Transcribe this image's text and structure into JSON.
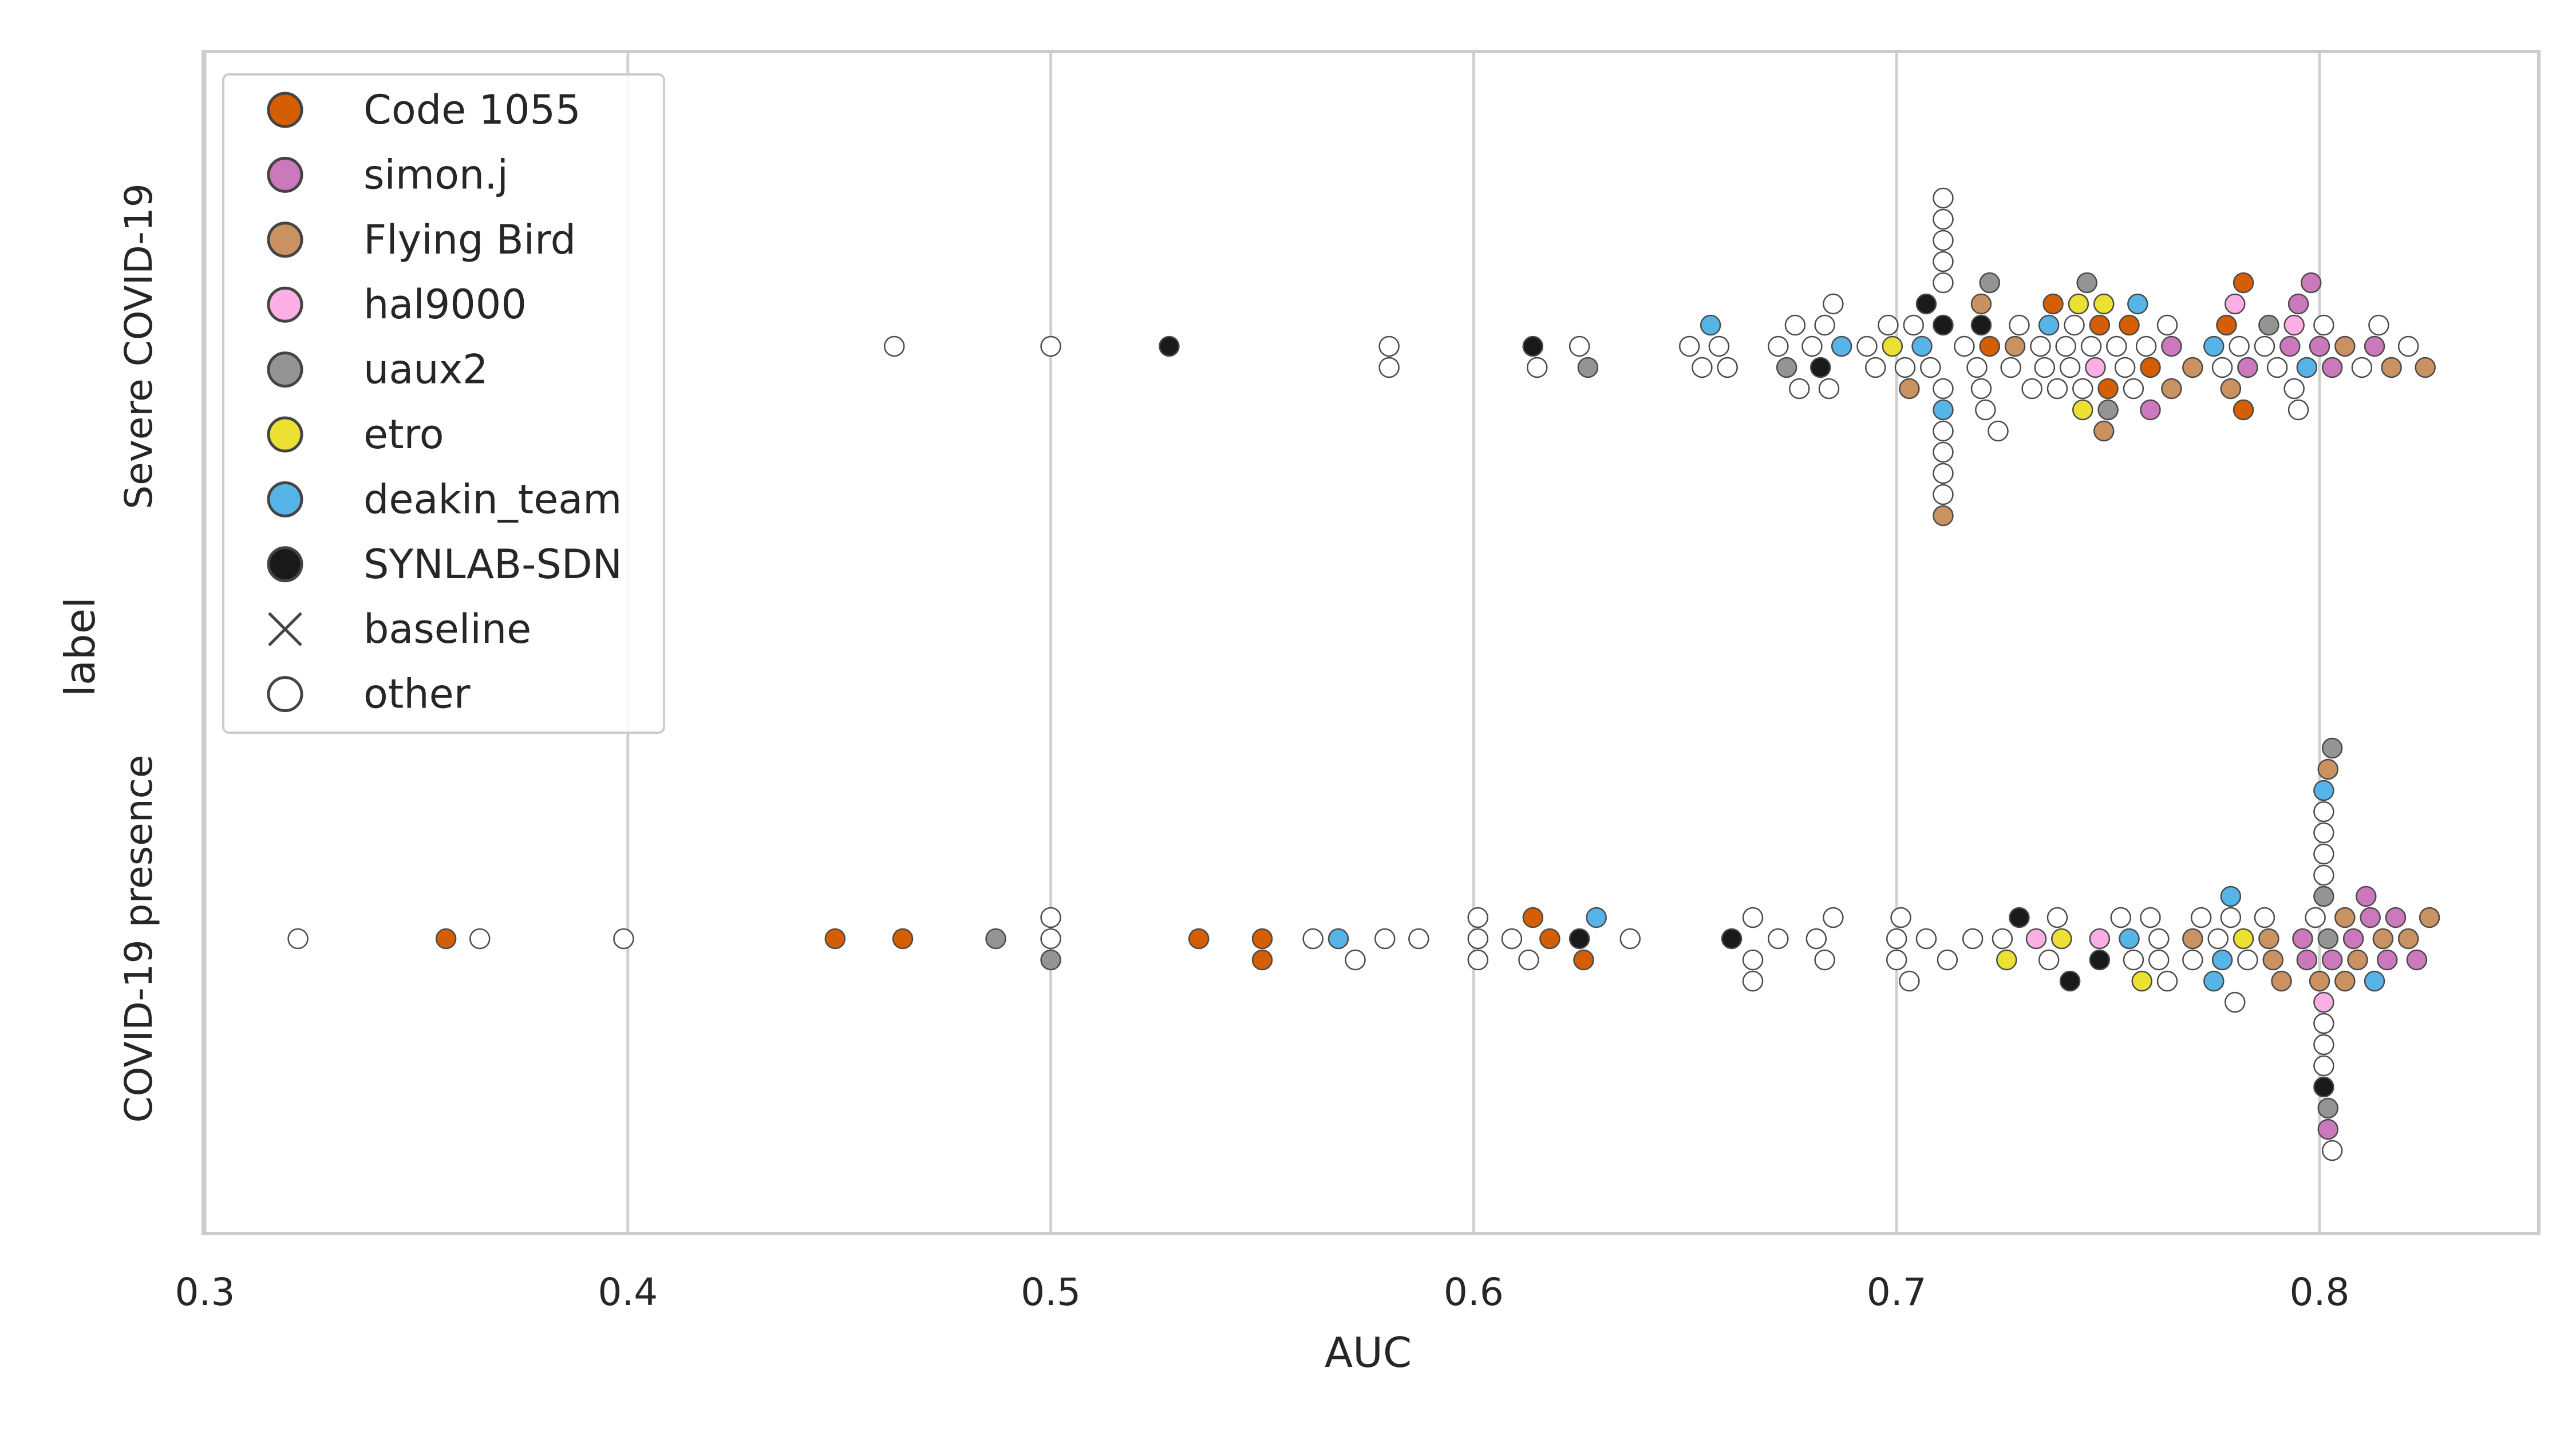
{
  "chart_data": {
    "type": "scatter",
    "subtype": "swarm",
    "title": "",
    "xlabel": "AUC",
    "ylabel": "label",
    "xlim": [
      0.3,
      0.85
    ],
    "xticks": [
      0.3,
      0.4,
      0.5,
      0.6,
      0.7,
      0.8
    ],
    "xtick_labels": [
      "0.3",
      "0.4",
      "0.5",
      "0.6",
      "0.7",
      "0.8"
    ],
    "categories": [
      "Severe COVID-19",
      "COVID-19 presence"
    ],
    "grid": "vertical",
    "legend_position": "top-left",
    "legend": [
      {
        "key": "code1055",
        "label": "Code 1055",
        "color": "#d55e00",
        "marker": "circle"
      },
      {
        "key": "simon",
        "label": "simon.j",
        "color": "#cc78bc",
        "marker": "circle"
      },
      {
        "key": "flying",
        "label": "Flying Bird",
        "color": "#ca9161",
        "marker": "circle"
      },
      {
        "key": "hal",
        "label": "hal9000",
        "color": "#fbafe4",
        "marker": "circle"
      },
      {
        "key": "uaux2",
        "label": "uaux2",
        "color": "#949494",
        "marker": "circle"
      },
      {
        "key": "etro",
        "label": "etro",
        "color": "#ece133",
        "marker": "circle"
      },
      {
        "key": "deakin",
        "label": "deakin_team",
        "color": "#56b4e9",
        "marker": "circle"
      },
      {
        "key": "synlab",
        "label": "SYNLAB-SDN",
        "color": "#1a1a1a",
        "marker": "circle"
      },
      {
        "key": "baseline",
        "label": "baseline",
        "color": "#444444",
        "marker": "x"
      },
      {
        "key": "other",
        "label": "other",
        "color": "#ffffff",
        "marker": "circle"
      }
    ],
    "series": [
      {
        "name": "Severe COVID-19",
        "points": [
          [
            0.463,
            "other"
          ],
          [
            0.5,
            "other"
          ],
          [
            0.528,
            "synlab"
          ],
          [
            0.58,
            "other"
          ],
          [
            0.58,
            "other"
          ],
          [
            0.614,
            "synlab"
          ],
          [
            0.615,
            "other"
          ],
          [
            0.625,
            "other"
          ],
          [
            0.627,
            "uaux2"
          ],
          [
            0.651,
            "other"
          ],
          [
            0.654,
            "other"
          ],
          [
            0.656,
            "deakin"
          ],
          [
            0.658,
            "other"
          ],
          [
            0.66,
            "other"
          ],
          [
            0.672,
            "other"
          ],
          [
            0.674,
            "uaux2"
          ],
          [
            0.676,
            "other"
          ],
          [
            0.677,
            "other"
          ],
          [
            0.68,
            "other"
          ],
          [
            0.682,
            "synlab"
          ],
          [
            0.683,
            "other"
          ],
          [
            0.684,
            "other"
          ],
          [
            0.685,
            "other"
          ],
          [
            0.687,
            "deakin"
          ],
          [
            0.693,
            "other"
          ],
          [
            0.695,
            "other"
          ],
          [
            0.698,
            "other"
          ],
          [
            0.699,
            "etro"
          ],
          [
            0.702,
            "other"
          ],
          [
            0.703,
            "flying"
          ],
          [
            0.704,
            "other"
          ],
          [
            0.706,
            "deakin"
          ],
          [
            0.707,
            "synlab"
          ],
          [
            0.708,
            "other"
          ],
          [
            0.711,
            "synlab"
          ],
          [
            0.711,
            "other"
          ],
          [
            0.711,
            "deakin"
          ],
          [
            0.711,
            "other"
          ],
          [
            0.711,
            "other"
          ],
          [
            0.711,
            "other"
          ],
          [
            0.711,
            "other"
          ],
          [
            0.711,
            "other"
          ],
          [
            0.711,
            "other"
          ],
          [
            0.711,
            "other"
          ],
          [
            0.711,
            "other"
          ],
          [
            0.711,
            "other"
          ],
          [
            0.711,
            "flying"
          ],
          [
            0.716,
            "other"
          ],
          [
            0.719,
            "other"
          ],
          [
            0.72,
            "synlab"
          ],
          [
            0.72,
            "other"
          ],
          [
            0.72,
            "flying"
          ],
          [
            0.721,
            "other"
          ],
          [
            0.722,
            "code1055"
          ],
          [
            0.722,
            "uaux2"
          ],
          [
            0.724,
            "other"
          ],
          [
            0.727,
            "other"
          ],
          [
            0.728,
            "flying"
          ],
          [
            0.729,
            "other"
          ],
          [
            0.732,
            "other"
          ],
          [
            0.734,
            "other"
          ],
          [
            0.735,
            "other"
          ],
          [
            0.736,
            "deakin"
          ],
          [
            0.737,
            "code1055"
          ],
          [
            0.738,
            "other"
          ],
          [
            0.74,
            "other"
          ],
          [
            0.741,
            "other"
          ],
          [
            0.742,
            "other"
          ],
          [
            0.743,
            "etro"
          ],
          [
            0.744,
            "other"
          ],
          [
            0.744,
            "etro"
          ],
          [
            0.745,
            "uaux2"
          ],
          [
            0.746,
            "other"
          ],
          [
            0.747,
            "hal"
          ],
          [
            0.748,
            "code1055"
          ],
          [
            0.749,
            "etro"
          ],
          [
            0.749,
            "flying"
          ],
          [
            0.75,
            "code1055"
          ],
          [
            0.75,
            "uaux2"
          ],
          [
            0.752,
            "other"
          ],
          [
            0.754,
            "other"
          ],
          [
            0.755,
            "code1055"
          ],
          [
            0.756,
            "other"
          ],
          [
            0.757,
            "deakin"
          ],
          [
            0.759,
            "other"
          ],
          [
            0.76,
            "code1055"
          ],
          [
            0.76,
            "simon"
          ],
          [
            0.764,
            "other"
          ],
          [
            0.765,
            "simon"
          ],
          [
            0.765,
            "flying"
          ],
          [
            0.77,
            "flying"
          ],
          [
            0.775,
            "deakin"
          ],
          [
            0.777,
            "other"
          ],
          [
            0.778,
            "code1055"
          ],
          [
            0.779,
            "flying"
          ],
          [
            0.78,
            "hal"
          ],
          [
            0.781,
            "other"
          ],
          [
            0.782,
            "code1055"
          ],
          [
            0.782,
            "code1055"
          ],
          [
            0.783,
            "simon"
          ],
          [
            0.787,
            "other"
          ],
          [
            0.788,
            "uaux2"
          ],
          [
            0.79,
            "other"
          ],
          [
            0.793,
            "simon"
          ],
          [
            0.794,
            "hal"
          ],
          [
            0.794,
            "other"
          ],
          [
            0.795,
            "simon"
          ],
          [
            0.795,
            "other"
          ],
          [
            0.797,
            "deakin"
          ],
          [
            0.798,
            "simon"
          ],
          [
            0.8,
            "simon"
          ],
          [
            0.801,
            "other"
          ],
          [
            0.803,
            "simon"
          ],
          [
            0.806,
            "flying"
          ],
          [
            0.81,
            "other"
          ],
          [
            0.813,
            "simon"
          ],
          [
            0.814,
            "other"
          ],
          [
            0.817,
            "flying"
          ],
          [
            0.821,
            "other"
          ],
          [
            0.825,
            "flying"
          ]
        ]
      },
      {
        "name": "COVID-19 presence",
        "points": [
          [
            0.322,
            "other"
          ],
          [
            0.357,
            "code1055"
          ],
          [
            0.365,
            "other"
          ],
          [
            0.399,
            "other"
          ],
          [
            0.449,
            "code1055"
          ],
          [
            0.465,
            "code1055"
          ],
          [
            0.487,
            "uaux2"
          ],
          [
            0.5,
            "other"
          ],
          [
            0.5,
            "uaux2"
          ],
          [
            0.5,
            "other"
          ],
          [
            0.535,
            "code1055"
          ],
          [
            0.55,
            "code1055"
          ],
          [
            0.55,
            "code1055"
          ],
          [
            0.562,
            "other"
          ],
          [
            0.568,
            "deakin"
          ],
          [
            0.572,
            "other"
          ],
          [
            0.579,
            "other"
          ],
          [
            0.587,
            "other"
          ],
          [
            0.601,
            "other"
          ],
          [
            0.601,
            "other"
          ],
          [
            0.601,
            "other"
          ],
          [
            0.609,
            "other"
          ],
          [
            0.613,
            "other"
          ],
          [
            0.614,
            "code1055"
          ],
          [
            0.618,
            "code1055"
          ],
          [
            0.625,
            "synlab"
          ],
          [
            0.626,
            "code1055"
          ],
          [
            0.629,
            "deakin"
          ],
          [
            0.637,
            "other"
          ],
          [
            0.661,
            "synlab"
          ],
          [
            0.666,
            "other"
          ],
          [
            0.666,
            "other"
          ],
          [
            0.666,
            "other"
          ],
          [
            0.672,
            "other"
          ],
          [
            0.681,
            "other"
          ],
          [
            0.683,
            "other"
          ],
          [
            0.685,
            "other"
          ],
          [
            0.7,
            "other"
          ],
          [
            0.7,
            "other"
          ],
          [
            0.701,
            "other"
          ],
          [
            0.703,
            "other"
          ],
          [
            0.707,
            "other"
          ],
          [
            0.712,
            "other"
          ],
          [
            0.718,
            "other"
          ],
          [
            0.725,
            "other"
          ],
          [
            0.726,
            "etro"
          ],
          [
            0.729,
            "synlab"
          ],
          [
            0.733,
            "hal"
          ],
          [
            0.736,
            "other"
          ],
          [
            0.738,
            "other"
          ],
          [
            0.739,
            "etro"
          ],
          [
            0.741,
            "synlab"
          ],
          [
            0.748,
            "hal"
          ],
          [
            0.748,
            "synlab"
          ],
          [
            0.753,
            "other"
          ],
          [
            0.755,
            "deakin"
          ],
          [
            0.756,
            "other"
          ],
          [
            0.758,
            "etro"
          ],
          [
            0.76,
            "other"
          ],
          [
            0.762,
            "other"
          ],
          [
            0.762,
            "other"
          ],
          [
            0.764,
            "other"
          ],
          [
            0.77,
            "flying"
          ],
          [
            0.77,
            "other"
          ],
          [
            0.772,
            "other"
          ],
          [
            0.775,
            "deakin"
          ],
          [
            0.776,
            "other"
          ],
          [
            0.777,
            "deakin"
          ],
          [
            0.779,
            "other"
          ],
          [
            0.779,
            "deakin"
          ],
          [
            0.78,
            "other"
          ],
          [
            0.782,
            "etro"
          ],
          [
            0.783,
            "other"
          ],
          [
            0.787,
            "other"
          ],
          [
            0.788,
            "flying"
          ],
          [
            0.789,
            "flying"
          ],
          [
            0.791,
            "flying"
          ],
          [
            0.796,
            "simon"
          ],
          [
            0.797,
            "simon"
          ],
          [
            0.799,
            "other"
          ],
          [
            0.8,
            "flying"
          ],
          [
            0.801,
            "uaux2"
          ],
          [
            0.801,
            "hal"
          ],
          [
            0.801,
            "other"
          ],
          [
            0.801,
            "other"
          ],
          [
            0.801,
            "other"
          ],
          [
            0.801,
            "other"
          ],
          [
            0.801,
            "other"
          ],
          [
            0.801,
            "other"
          ],
          [
            0.801,
            "other"
          ],
          [
            0.801,
            "synlab"
          ],
          [
            0.801,
            "deakin"
          ],
          [
            0.802,
            "uaux2"
          ],
          [
            0.802,
            "uaux2"
          ],
          [
            0.802,
            "flying"
          ],
          [
            0.802,
            "simon"
          ],
          [
            0.803,
            "simon"
          ],
          [
            0.803,
            "uaux2"
          ],
          [
            0.803,
            "other"
          ],
          [
            0.806,
            "flying"
          ],
          [
            0.806,
            "flying"
          ],
          [
            0.808,
            "simon"
          ],
          [
            0.809,
            "flying"
          ],
          [
            0.811,
            "simon"
          ],
          [
            0.812,
            "simon"
          ],
          [
            0.813,
            "deakin"
          ],
          [
            0.815,
            "flying"
          ],
          [
            0.816,
            "simon"
          ],
          [
            0.818,
            "simon"
          ],
          [
            0.821,
            "flying"
          ],
          [
            0.823,
            "simon"
          ],
          [
            0.826,
            "flying"
          ]
        ]
      }
    ]
  }
}
